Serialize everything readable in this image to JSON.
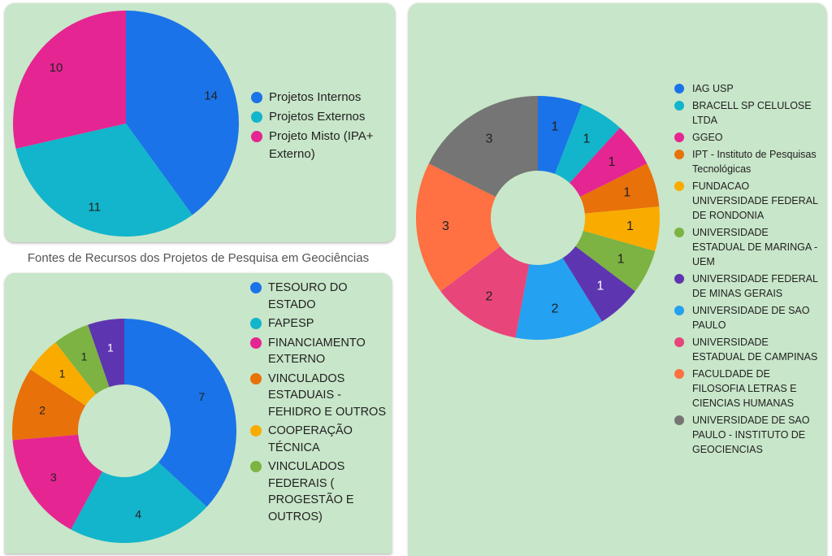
{
  "caption": "Fontes de Recursos dos Projetos de Pesquisa em Geociências",
  "chart_data": [
    {
      "type": "pie",
      "title": "",
      "categories": [
        "Projetos Internos",
        "Projetos Externos",
        "Projeto Misto (IPA+ Externo)"
      ],
      "values": [
        14,
        11,
        10
      ],
      "colors": [
        "#1a73e8",
        "#12b5cb",
        "#e52592"
      ],
      "legend": "right"
    },
    {
      "type": "pie",
      "donut": true,
      "title": "Fontes de Recursos dos Projetos de Pesquisa em Geociências",
      "categories": [
        "TESOURO DO ESTADO",
        "FAPESP",
        "FINANCIAMENTO EXTERNO",
        "VINCULADOS ESTADUAIS - FEHIDRO E OUTROS",
        "COOPERAÇÃO TÉCNICA",
        "VINCULADOS FEDERAIS ( PROGESTÃO E OUTROS)",
        ""
      ],
      "values": [
        7,
        4,
        3,
        2,
        1,
        1,
        1
      ],
      "colors": [
        "#1a73e8",
        "#12b5cb",
        "#e52592",
        "#e8710a",
        "#f9ab00",
        "#7cb342",
        "#5e35b1"
      ],
      "legend": "right"
    },
    {
      "type": "pie",
      "donut": true,
      "title": "",
      "categories": [
        "IAG USP",
        "BRACELL SP CELULOSE LTDA",
        "GGEO",
        "IPT - Instituto de Pesquisas Tecnológicas",
        "FUNDACAO UNIVERSIDADE FEDERAL DE RONDONIA",
        "UNIVERSIDADE ESTADUAL DE MARINGA - UEM",
        "UNIVERSIDADE FEDERAL DE MINAS GERAIS",
        "UNIVERSIDADE DE SAO PAULO",
        "UNIVERSIDADE ESTADUAL DE CAMPINAS",
        "FACULDADE DE FILOSOFIA LETRAS E CIENCIAS HUMANAS",
        "UNIVERSIDADE DE SAO PAULO - INSTITUTO DE GEOCIENCIAS"
      ],
      "values": [
        1,
        1,
        1,
        1,
        1,
        1,
        1,
        2,
        2,
        3,
        3
      ],
      "colors": [
        "#1a73e8",
        "#12b5cb",
        "#e52592",
        "#e8710a",
        "#f9ab00",
        "#7cb342",
        "#5e35b1",
        "#24a1f1",
        "#e8457b",
        "#ff7043",
        "#757575"
      ],
      "legend": "right"
    }
  ]
}
